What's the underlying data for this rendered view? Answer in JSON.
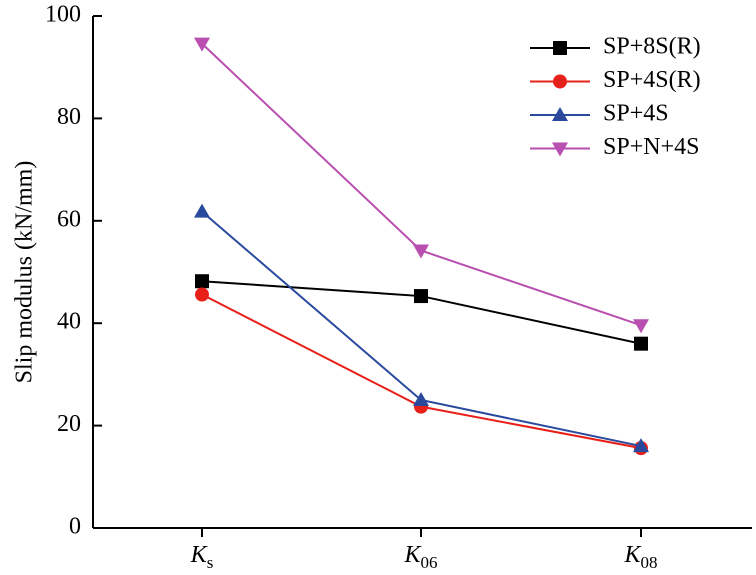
{
  "chart_data": {
    "type": "line",
    "y_label": "Slip modulus (kN/mm)",
    "categories": [
      "Ks",
      "K06",
      "K08"
    ],
    "ylim": [
      0,
      100
    ],
    "yticks": [
      0,
      20,
      40,
      60,
      80,
      100
    ],
    "legend": "top-right",
    "series": [
      {
        "name": "SP+8S(R)",
        "color": "#000000",
        "marker": "square",
        "values": [
          48.2,
          45.3,
          36.0
        ]
      },
      {
        "name": "SP+4S(R)",
        "color": "#e8201a",
        "marker": "circle",
        "values": [
          45.6,
          23.7,
          15.6
        ]
      },
      {
        "name": "SP+4S",
        "color": "#2a4a9e",
        "marker": "triangle-up",
        "values": [
          61.8,
          25.0,
          16.0
        ]
      },
      {
        "name": "SP+N+4S",
        "color": "#b94fb0",
        "marker": "triangle-down",
        "values": [
          94.6,
          54.2,
          39.6
        ]
      }
    ]
  }
}
